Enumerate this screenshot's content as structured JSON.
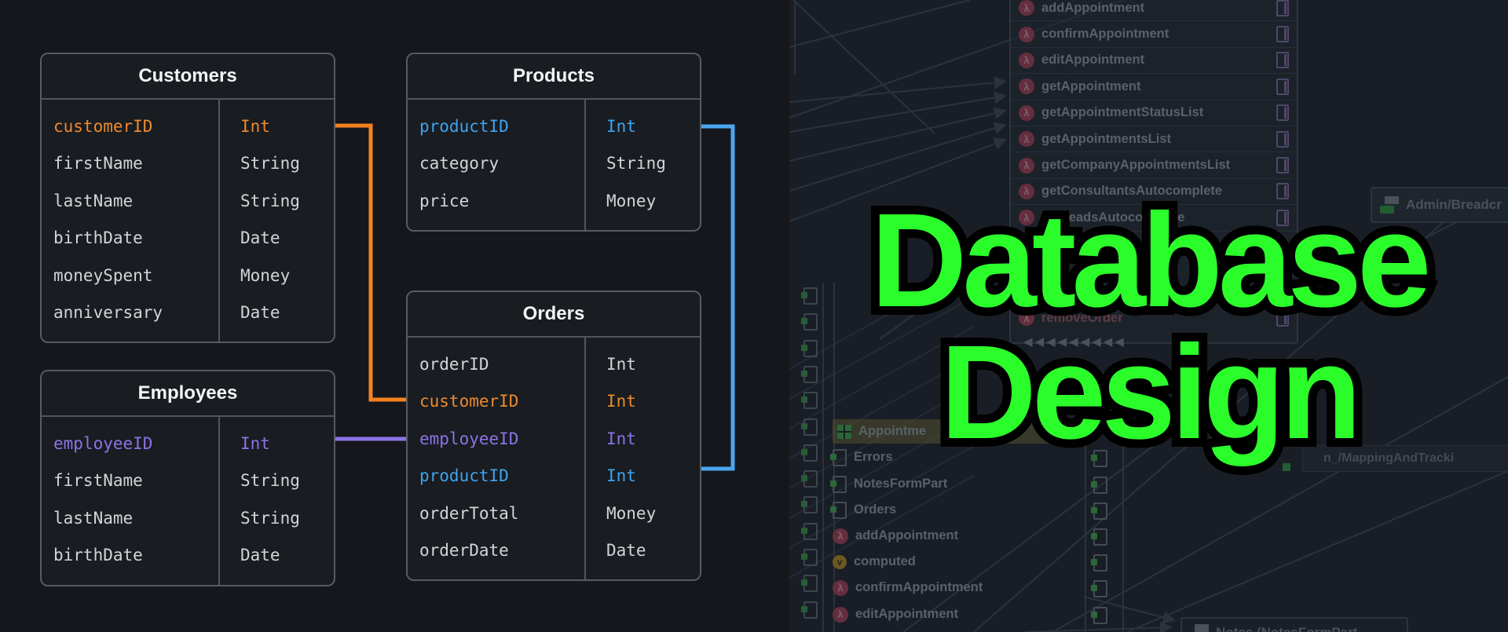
{
  "title": {
    "line1": "Database",
    "line2": "Design",
    "color": "#2BFD2B"
  },
  "colors": {
    "key_orange": "#EC8A2F",
    "key_blue": "#3FA3EE",
    "key_purple": "#8C73E6",
    "field_text": "#D2D5D8",
    "table_border": "#565B63"
  },
  "erd": {
    "tables": [
      {
        "name": "Customers",
        "fields": [
          {
            "field": "customerID",
            "type": "Int",
            "key": "orange"
          },
          {
            "field": "firstName",
            "type": "String",
            "key": ""
          },
          {
            "field": "lastName",
            "type": "String",
            "key": ""
          },
          {
            "field": "birthDate",
            "type": "Date",
            "key": ""
          },
          {
            "field": "moneySpent",
            "type": "Money",
            "key": ""
          },
          {
            "field": "anniversary",
            "type": "Date",
            "key": ""
          }
        ]
      },
      {
        "name": "Products",
        "fields": [
          {
            "field": "productID",
            "type": "Int",
            "key": "blue"
          },
          {
            "field": "category",
            "type": "String",
            "key": ""
          },
          {
            "field": "price",
            "type": "Money",
            "key": ""
          }
        ]
      },
      {
        "name": "Orders",
        "fields": [
          {
            "field": "orderID",
            "type": "Int",
            "key": ""
          },
          {
            "field": "customerID",
            "type": "Int",
            "key": "orange"
          },
          {
            "field": "employeeID",
            "type": "Int",
            "key": "purple"
          },
          {
            "field": "productID",
            "type": "Int",
            "key": "blue"
          },
          {
            "field": "orderTotal",
            "type": "Money",
            "key": ""
          },
          {
            "field": "orderDate",
            "type": "Date",
            "key": ""
          }
        ]
      },
      {
        "name": "Employees",
        "fields": [
          {
            "field": "employeeID",
            "type": "Int",
            "key": "purple"
          },
          {
            "field": "firstName",
            "type": "String",
            "key": ""
          },
          {
            "field": "lastName",
            "type": "String",
            "key": ""
          },
          {
            "field": "birthDate",
            "type": "Date",
            "key": ""
          }
        ]
      }
    ],
    "relations": [
      {
        "from": "Customers.customerID",
        "to": "Orders.customerID",
        "color": "#F5821F"
      },
      {
        "from": "Employees.employeeID",
        "to": "Orders.employeeID",
        "color": "#8D74E8"
      },
      {
        "from": "Products.productID",
        "to": "Orders.productID",
        "color": "#4BA6F0"
      }
    ]
  },
  "backdrop": {
    "function_list": [
      "addAppointment",
      "confirmAppointment",
      "editAppointment",
      "getAppointment",
      "getAppointmentStatusList",
      "getAppointmentsList",
      "getCompanyAppointmentsList",
      "getConsultantsAutocomplete",
      "getLeadsAutocomplete"
    ],
    "remove_order": "removeOrder",
    "bottom_items": [
      "Appointme",
      "Errors",
      "NotesFormPart",
      "Orders",
      "addAppointment",
      "computed",
      "confirmAppointment",
      "editAppointment"
    ],
    "admin_label": "Admin/Breadcr",
    "mapping_label": "n_/MappingAndTracki",
    "notes_label": "Notes (NotesFormPart",
    "left_arrows": "◀◀◀◀◀◀◀◀◀"
  }
}
